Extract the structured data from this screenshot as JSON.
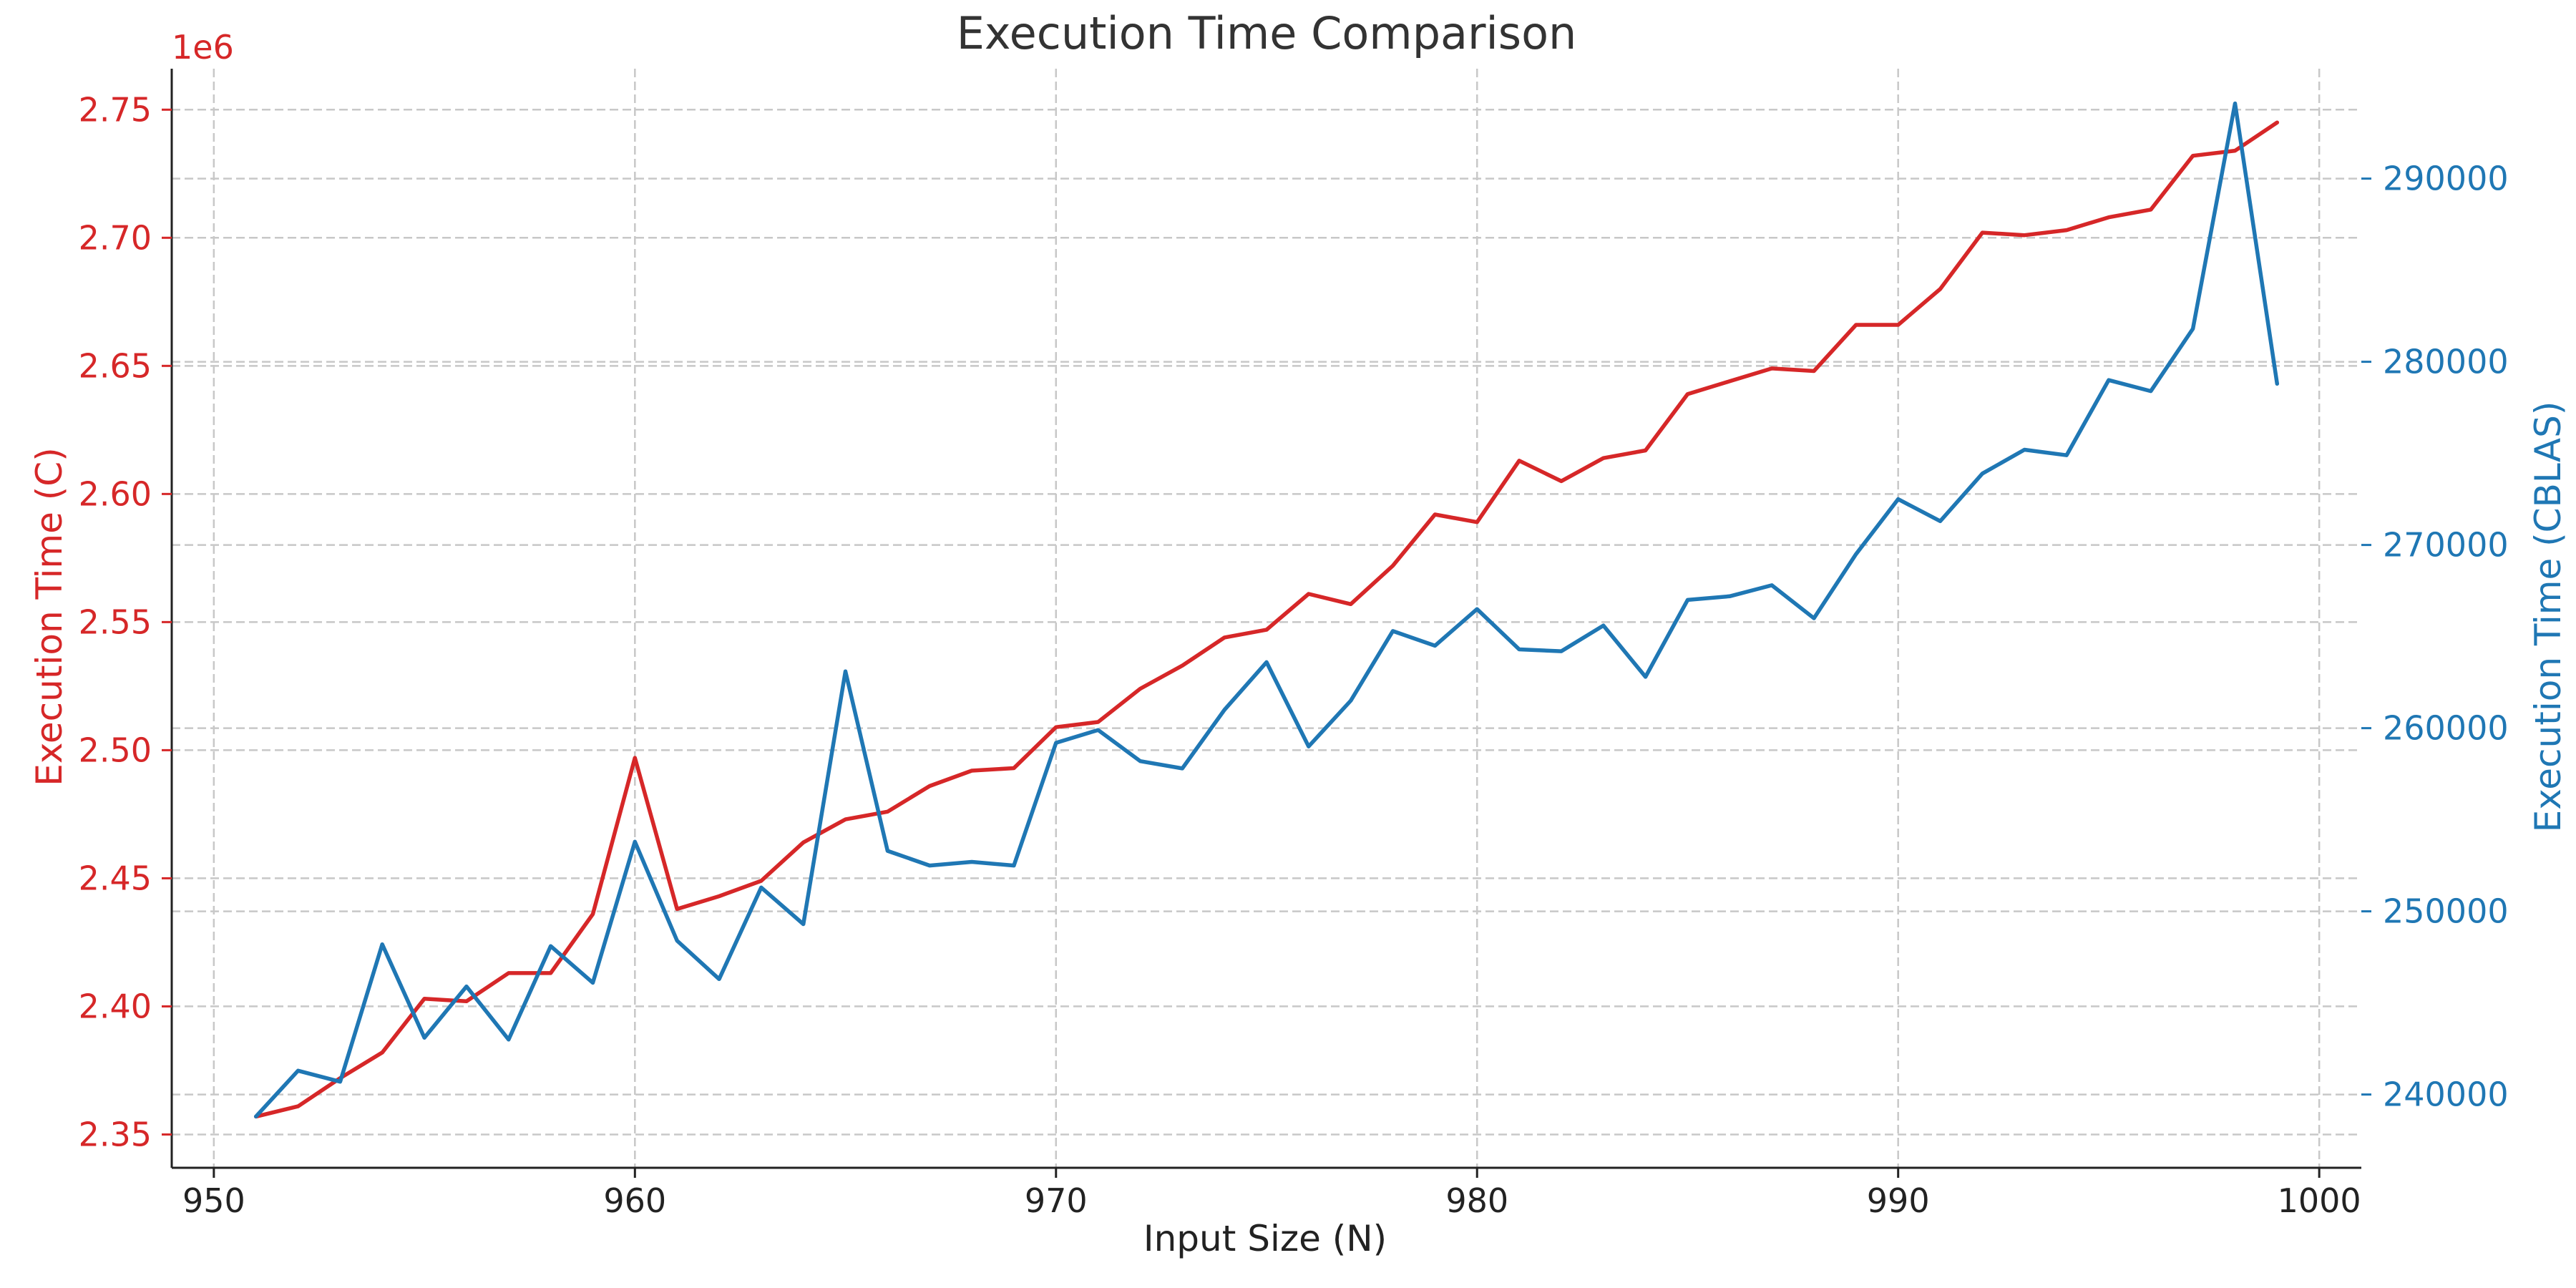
{
  "chart_data": {
    "type": "line",
    "title": "Execution Time Comparison",
    "xlabel": "Input Size (N)",
    "ylabel_left": "Execution Time (C)",
    "ylabel_right": "Execution Time (CBLAS)",
    "left_axis_offset_label": "1e6",
    "grid": true,
    "colors": {
      "c": "#d62728",
      "cblas": "#1f77b4"
    },
    "xlim": [
      949,
      1001
    ],
    "ylim_left": [
      2.337,
      2.766
    ],
    "ylim_right": [
      236000,
      296000
    ],
    "x_ticks": [
      950,
      960,
      970,
      980,
      990,
      1000
    ],
    "x_tick_labels": [
      "950",
      "960",
      "970",
      "980",
      "990",
      "1000"
    ],
    "y_left_ticks": [
      2.35,
      2.4,
      2.45,
      2.5,
      2.55,
      2.6,
      2.65,
      2.7,
      2.75
    ],
    "y_left_tick_labels": [
      "2.35",
      "2.40",
      "2.45",
      "2.50",
      "2.55",
      "2.60",
      "2.65",
      "2.70",
      "2.75"
    ],
    "y_right_ticks": [
      240000,
      250000,
      260000,
      270000,
      280000,
      290000
    ],
    "y_right_tick_labels": [
      "240000",
      "250000",
      "260000",
      "270000",
      "280000",
      "290000"
    ],
    "x": [
      951,
      952,
      953,
      954,
      955,
      956,
      957,
      958,
      959,
      960,
      961,
      962,
      963,
      964,
      965,
      966,
      967,
      968,
      969,
      970,
      971,
      972,
      973,
      974,
      975,
      976,
      977,
      978,
      979,
      980,
      981,
      982,
      983,
      984,
      985,
      986,
      987,
      988,
      989,
      990,
      991,
      992,
      993,
      994,
      995,
      996,
      997,
      998,
      999
    ],
    "series": [
      {
        "axis": "left",
        "values": [
          2.357,
          2.361,
          2.372,
          2.382,
          2.403,
          2.402,
          2.413,
          2.413,
          2.436,
          2.497,
          2.438,
          2.443,
          2.449,
          2.464,
          2.473,
          2.476,
          2.486,
          2.492,
          2.493,
          2.509,
          2.511,
          2.524,
          2.533,
          2.544,
          2.547,
          2.561,
          2.557,
          2.572,
          2.592,
          2.589,
          2.613,
          2.605,
          2.614,
          2.617,
          2.639,
          2.644,
          2.649,
          2.648,
          2.666,
          2.666,
          2.68,
          2.702,
          2.701,
          2.703,
          2.708,
          2.711,
          2.732,
          2.734,
          2.745
        ]
      },
      {
        "axis": "right",
        "values": [
          238800,
          241300,
          240700,
          248200,
          243100,
          245900,
          243000,
          248100,
          246100,
          253800,
          248400,
          246300,
          251300,
          249300,
          263100,
          253300,
          252500,
          252700,
          252500,
          259200,
          259900,
          258200,
          257800,
          261000,
          263600,
          259000,
          261500,
          265300,
          264500,
          266500,
          264300,
          264200,
          265600,
          262800,
          267000,
          267200,
          267800,
          266000,
          269500,
          272500,
          271300,
          273900,
          275200,
          274900,
          279000,
          278400,
          281800,
          294100,
          278800
        ]
      }
    ]
  }
}
